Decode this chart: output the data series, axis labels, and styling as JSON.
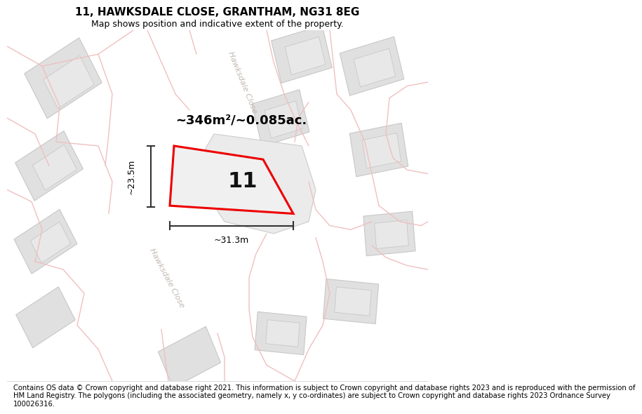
{
  "title": "11, HAWKSDALE CLOSE, GRANTHAM, NG31 8EG",
  "subtitle": "Map shows position and indicative extent of the property.",
  "footer_lines": [
    "Contains OS data © Crown copyright and database right 2021. This information is subject to Crown copyright and database rights 2023 and is reproduced with the permission of",
    "HM Land Registry. The polygons (including the associated geometry, namely x, y co-ordinates) are subject to Crown copyright and database rights 2023 Ordnance Survey",
    "100026316."
  ],
  "area_label": "~346m²/~0.085ac.",
  "number_label": "11",
  "width_label": "~31.3m",
  "height_label": "~23.5m",
  "road_label_upper": "Hawksdale Close",
  "road_label_lower": "Hawksdale Close",
  "bg_color": "#f5f3f0",
  "white_bg": "#ffffff",
  "plot_outline_color": "#ee0000",
  "plot_fill_color": "#f0f0f0",
  "building_fill": "#e0e0e0",
  "building_stroke": "#c8c8c8",
  "plot_stroke_light": "#f0c0c0",
  "road_label_color": "#c0b8b0",
  "title_fontsize": 11,
  "subtitle_fontsize": 9,
  "footer_fontsize": 7.2,
  "area_fontsize": 13,
  "number_fontsize": 22,
  "dim_fontsize": 9,
  "road_label_fontsize": 8
}
